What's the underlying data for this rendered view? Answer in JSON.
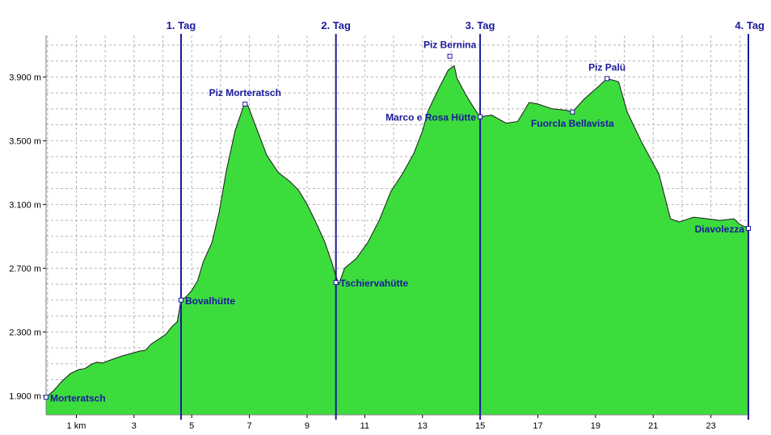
{
  "chart_data": {
    "type": "area",
    "title": "",
    "xlabel": "",
    "ylabel": "",
    "xlim": [
      -0.05,
      24.3
    ],
    "ylim": [
      1780,
      4160
    ],
    "grid": true,
    "colors": {
      "fill": "#3ddc3d",
      "line": "#1a1a1a",
      "marker": "#1a1a9c",
      "grid": "#b4b4b4"
    },
    "x_ticks": [
      {
        "value": 1,
        "label": "1 km"
      },
      {
        "value": 3,
        "label": "3"
      },
      {
        "value": 5,
        "label": "5"
      },
      {
        "value": 7,
        "label": "7"
      },
      {
        "value": 9,
        "label": "9"
      },
      {
        "value": 11,
        "label": "11"
      },
      {
        "value": 13,
        "label": "13"
      },
      {
        "value": 15,
        "label": "15"
      },
      {
        "value": 17,
        "label": "17"
      },
      {
        "value": 19,
        "label": "19"
      },
      {
        "value": 21,
        "label": "21"
      },
      {
        "value": 23,
        "label": "23"
      }
    ],
    "y_ticks": [
      {
        "value": 1900,
        "label": "1.900 m"
      },
      {
        "value": 2300,
        "label": "2.300 m"
      },
      {
        "value": 2700,
        "label": "2.700 m"
      },
      {
        "value": 3100,
        "label": "3.100 m"
      },
      {
        "value": 3500,
        "label": "3.500 m"
      },
      {
        "value": 3900,
        "label": "3.900 m"
      }
    ],
    "profile": [
      [
        -0.05,
        1890
      ],
      [
        0.2,
        1930
      ],
      [
        0.5,
        1990
      ],
      [
        0.8,
        2040
      ],
      [
        1.1,
        2065
      ],
      [
        1.3,
        2070
      ],
      [
        1.5,
        2095
      ],
      [
        1.7,
        2110
      ],
      [
        1.9,
        2105
      ],
      [
        2.2,
        2125
      ],
      [
        2.6,
        2150
      ],
      [
        2.9,
        2165
      ],
      [
        3.2,
        2180
      ],
      [
        3.4,
        2185
      ],
      [
        3.6,
        2225
      ],
      [
        3.9,
        2260
      ],
      [
        4.1,
        2285
      ],
      [
        4.3,
        2330
      ],
      [
        4.5,
        2365
      ],
      [
        4.63,
        2500
      ],
      [
        4.8,
        2520
      ],
      [
        5.0,
        2560
      ],
      [
        5.2,
        2620
      ],
      [
        5.4,
        2740
      ],
      [
        5.7,
        2860
      ],
      [
        5.95,
        3050
      ],
      [
        6.2,
        3310
      ],
      [
        6.5,
        3560
      ],
      [
        6.8,
        3720
      ],
      [
        6.95,
        3720
      ],
      [
        7.2,
        3600
      ],
      [
        7.6,
        3410
      ],
      [
        8.0,
        3300
      ],
      [
        8.4,
        3245
      ],
      [
        8.7,
        3190
      ],
      [
        9.0,
        3100
      ],
      [
        9.3,
        2990
      ],
      [
        9.6,
        2870
      ],
      [
        9.85,
        2740
      ],
      [
        10.0,
        2650
      ],
      [
        10.1,
        2600
      ],
      [
        10.3,
        2700
      ],
      [
        10.7,
        2760
      ],
      [
        11.1,
        2860
      ],
      [
        11.5,
        3000
      ],
      [
        11.9,
        3180
      ],
      [
        12.3,
        3290
      ],
      [
        12.7,
        3420
      ],
      [
        13.0,
        3560
      ],
      [
        13.2,
        3690
      ],
      [
        13.6,
        3840
      ],
      [
        13.9,
        3945
      ],
      [
        14.1,
        3970
      ],
      [
        14.2,
        3890
      ],
      [
        14.5,
        3790
      ],
      [
        14.8,
        3700
      ],
      [
        15.0,
        3650
      ],
      [
        15.4,
        3660
      ],
      [
        15.9,
        3610
      ],
      [
        16.3,
        3620
      ],
      [
        16.7,
        3740
      ],
      [
        17.0,
        3730
      ],
      [
        17.5,
        3700
      ],
      [
        18.0,
        3690
      ],
      [
        18.2,
        3680
      ],
      [
        18.6,
        3760
      ],
      [
        19.1,
        3840
      ],
      [
        19.4,
        3890
      ],
      [
        19.8,
        3870
      ],
      [
        20.1,
        3680
      ],
      [
        20.6,
        3490
      ],
      [
        21.2,
        3290
      ],
      [
        21.6,
        3010
      ],
      [
        21.9,
        2990
      ],
      [
        22.4,
        3020
      ],
      [
        22.9,
        3010
      ],
      [
        23.3,
        3000
      ],
      [
        23.8,
        3010
      ],
      [
        24.0,
        2975
      ],
      [
        24.3,
        2950
      ]
    ],
    "waypoints": [
      {
        "name": "Morteratsch",
        "x": -0.05,
        "y": 1890,
        "label_side": "right"
      },
      {
        "name": "Bovalhütte",
        "x": 4.63,
        "y": 2500,
        "label_side": "right"
      },
      {
        "name": "Piz Morteratsch",
        "x": 6.85,
        "y": 3730,
        "label_side": "above"
      },
      {
        "name": "Tschiervahütte",
        "x": 10.0,
        "y": 2610,
        "label_side": "right"
      },
      {
        "name": "Piz Bernina",
        "x": 13.95,
        "y": 4030,
        "label_side": "above"
      },
      {
        "name": "Marco e Rosa Hütte",
        "x": 15.0,
        "y": 3650,
        "label_side": "left"
      },
      {
        "name": "Fuorcla Bellavista",
        "x": 18.2,
        "y": 3680,
        "label_side": "below"
      },
      {
        "name": "Piz Palü",
        "x": 19.4,
        "y": 3890,
        "label_side": "above"
      },
      {
        "name": "Diavolezza",
        "x": 24.3,
        "y": 2950,
        "label_side": "left"
      }
    ],
    "day_markers": [
      {
        "label": "1. Tag",
        "x": 4.63
      },
      {
        "label": "2. Tag",
        "x": 10.0
      },
      {
        "label": "3. Tag",
        "x": 15.0
      },
      {
        "label": "4. Tag",
        "x": 24.3
      }
    ]
  }
}
